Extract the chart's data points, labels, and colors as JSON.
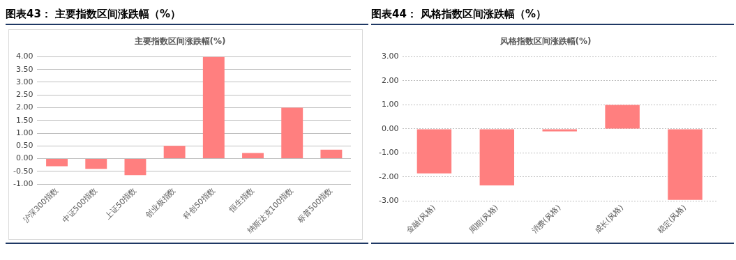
{
  "chart_data": [
    {
      "type": "bar",
      "title": "图表43： 主要指数区间涨跌幅（%）",
      "subtitle": "主要指数区间涨跌幅(%)",
      "categories": [
        "沪深300指数",
        "中证500指数",
        "上证50指数",
        "创业板指数",
        "科创50指数",
        "恒生指数",
        "纳斯达克100指数",
        "标普500指数"
      ],
      "values": [
        -0.3,
        -0.4,
        -0.65,
        0.5,
        4.0,
        0.22,
        2.0,
        0.35
      ],
      "color": "#ff7f7f",
      "ylim": [
        -1,
        4
      ],
      "yticks": [
        {
          "value": -1,
          "label": "-1.00"
        },
        {
          "value": -0.5,
          "label": "-0.50"
        },
        {
          "value": 0,
          "label": "0.00"
        },
        {
          "value": 0.5,
          "label": "0.50"
        },
        {
          "value": 1,
          "label": "1.00"
        },
        {
          "value": 1.5,
          "label": "1.50"
        },
        {
          "value": 2,
          "label": "2.00"
        },
        {
          "value": 2.5,
          "label": "2.50"
        },
        {
          "value": 3,
          "label": "3.00"
        },
        {
          "value": 3.5,
          "label": "3.50"
        },
        {
          "value": 4,
          "label": "4.00"
        }
      ],
      "grid": "y",
      "legend": false
    },
    {
      "type": "bar",
      "title": "图表44： 风格指数区间涨跌幅（%）",
      "subtitle": "风格指数区间涨跌幅(%)",
      "categories": [
        "金融(风格)",
        "周期(风格)",
        "消费(风格)",
        "成长(风格)",
        "稳定(风格)"
      ],
      "values": [
        -1.85,
        -2.35,
        -0.1,
        1.0,
        -2.95
      ],
      "color": "#ff7f7f",
      "ylim": [
        -3,
        3
      ],
      "yticks": [
        {
          "value": -3,
          "label": "-3.00"
        },
        {
          "value": -2,
          "label": "-2.00"
        },
        {
          "value": -1,
          "label": "-1.00"
        },
        {
          "value": 0,
          "label": "0.00"
        },
        {
          "value": 1,
          "label": "1.00"
        },
        {
          "value": 2,
          "label": "2.00"
        },
        {
          "value": 3,
          "label": "3.00"
        }
      ],
      "grid": "y",
      "legend": false
    }
  ]
}
